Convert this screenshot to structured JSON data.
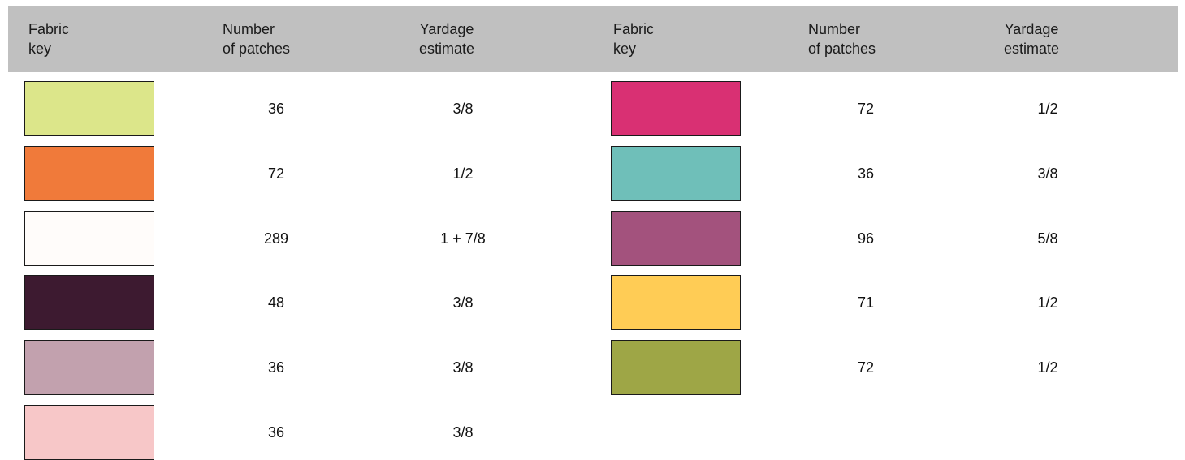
{
  "headers": {
    "left": {
      "fabric_key": "Fabric\nkey",
      "patches": "Number\nof patches",
      "yardage": "Yardage\nestimate"
    },
    "right": {
      "fabric_key": "Fabric\nkey",
      "patches": "Number\nof patches",
      "yardage": "Yardage\nestimate"
    }
  },
  "left_rows": [
    {
      "color": "#dce68a",
      "patches": "36",
      "yardage": "3/8"
    },
    {
      "color": "#f07a3a",
      "patches": "72",
      "yardage": "1/2"
    },
    {
      "color": "#fffcfa",
      "patches": "289",
      "yardage": "1 + 7/8"
    },
    {
      "color": "#3d1a30",
      "patches": "48",
      "yardage": "3/8"
    },
    {
      "color": "#c2a1ae",
      "patches": "36",
      "yardage": "3/8"
    },
    {
      "color": "#f7c7c8",
      "patches": "36",
      "yardage": "3/8"
    }
  ],
  "right_rows": [
    {
      "color": "#d93073",
      "patches": "72",
      "yardage": "1/2"
    },
    {
      "color": "#6fbfb9",
      "patches": "36",
      "yardage": "3/8"
    },
    {
      "color": "#a3527d",
      "patches": "96",
      "yardage": "5/8"
    },
    {
      "color": "#ffcc55",
      "patches": "71",
      "yardage": "1/2"
    },
    {
      "color": "#9ea646",
      "patches": "72",
      "yardage": "1/2"
    }
  ]
}
